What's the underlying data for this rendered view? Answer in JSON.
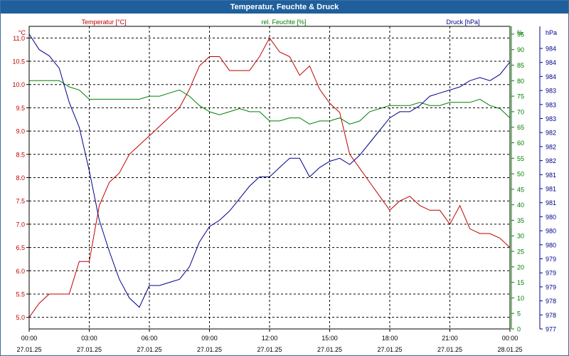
{
  "window": {
    "title": "Temperatur, Feuchte & Druck"
  },
  "chart_data": {
    "type": "line",
    "title": "Temperatur, Feuchte & Druck",
    "grid": true,
    "x_hours": [
      0,
      0.5,
      1,
      1.5,
      2,
      2.5,
      3,
      3.5,
      4,
      4.5,
      5,
      5.5,
      6,
      6.5,
      7,
      7.5,
      8,
      8.5,
      9,
      9.5,
      10,
      10.5,
      11,
      11.5,
      12,
      12.5,
      13,
      13.5,
      14,
      14.5,
      15,
      15.5,
      16,
      16.5,
      17,
      17.5,
      18,
      18.5,
      19,
      19.5,
      20,
      20.5,
      21,
      21.5,
      22,
      22.5,
      23,
      23.5,
      24
    ],
    "x_ticks": [
      {
        "time": "00:00",
        "date": "27.01.25"
      },
      {
        "time": "03:00",
        "date": "27.01.25"
      },
      {
        "time": "06:00",
        "date": "27.01.25"
      },
      {
        "time": "09:00",
        "date": "27.01.25"
      },
      {
        "time": "12:00",
        "date": "27.01.25"
      },
      {
        "time": "15:00",
        "date": "27.01.25"
      },
      {
        "time": "18:00",
        "date": "27.01.25"
      },
      {
        "time": "21:00",
        "date": "27.01.25"
      },
      {
        "time": "00:00",
        "date": "28.01.25"
      }
    ],
    "axes": {
      "temperature": {
        "unit": "°C",
        "min": 4.75,
        "max": 11.25,
        "color": "#c00000",
        "ticks": [
          "5.0",
          "5.5",
          "6.0",
          "6.5",
          "7.0",
          "7.5",
          "8.0",
          "8.5",
          "9.0",
          "9.5",
          "10.0",
          "10.5",
          "11.0"
        ]
      },
      "humidity": {
        "unit": "%",
        "min": 0,
        "max": 97.5,
        "color": "#008000",
        "ticks": [
          "0",
          "5",
          "10",
          "15",
          "20",
          "25",
          "30",
          "35",
          "40",
          "45",
          "50",
          "55",
          "60",
          "65",
          "70",
          "75",
          "80",
          "85",
          "90",
          "95"
        ]
      },
      "pressure": {
        "unit": "hPa",
        "color": "#00008b",
        "ticks": [
          "977",
          "978",
          "978",
          "979",
          "979",
          "979",
          "980",
          "980",
          "980",
          "981",
          "981",
          "981",
          "982",
          "982",
          "982",
          "983",
          "983",
          "983",
          "984",
          "984",
          "984"
        ]
      }
    },
    "series": [
      {
        "name": "Temperatur [°C]",
        "axis": "temperature",
        "color": "#c00000",
        "values": [
          5.0,
          5.3,
          5.5,
          5.5,
          5.5,
          6.2,
          6.2,
          7.4,
          7.9,
          8.1,
          8.5,
          8.7,
          8.9,
          9.1,
          9.3,
          9.5,
          9.9,
          10.4,
          10.6,
          10.6,
          10.3,
          10.3,
          10.3,
          10.6,
          11.0,
          10.7,
          10.6,
          10.2,
          10.4,
          9.9,
          9.6,
          9.4,
          8.5,
          8.2,
          7.9,
          7.6,
          7.3,
          7.5,
          7.6,
          7.4,
          7.3,
          7.3,
          7.0,
          7.4,
          6.9,
          6.8,
          6.8,
          6.7,
          6.5
        ]
      },
      {
        "name": "rel. Feuchte [%]",
        "axis": "humidity",
        "color": "#008000",
        "values": [
          80,
          80,
          80,
          80,
          78,
          77,
          74,
          74,
          74,
          74,
          74,
          74,
          75,
          75,
          76,
          77,
          75,
          72,
          70,
          69,
          70,
          71,
          70,
          70,
          67,
          67,
          68,
          68,
          66,
          67,
          67,
          68,
          66,
          67,
          70,
          71,
          72,
          72,
          72,
          73,
          72,
          72,
          73,
          73,
          73,
          74,
          72,
          71,
          68
        ]
      },
      {
        "name": "Druck [hPa]",
        "axis": "pressure",
        "color": "#00008b",
        "values": [
          95,
          90,
          88,
          84,
          73,
          65,
          51,
          35,
          25,
          16,
          10,
          7,
          14,
          14,
          15,
          16,
          20,
          28,
          33,
          35,
          38,
          42,
          46,
          49,
          49,
          52,
          55,
          55,
          49,
          52,
          54,
          55,
          53,
          56,
          60,
          64,
          68,
          70,
          70,
          72,
          75,
          76,
          77,
          78,
          80,
          81,
          80,
          82,
          86
        ]
      }
    ]
  }
}
